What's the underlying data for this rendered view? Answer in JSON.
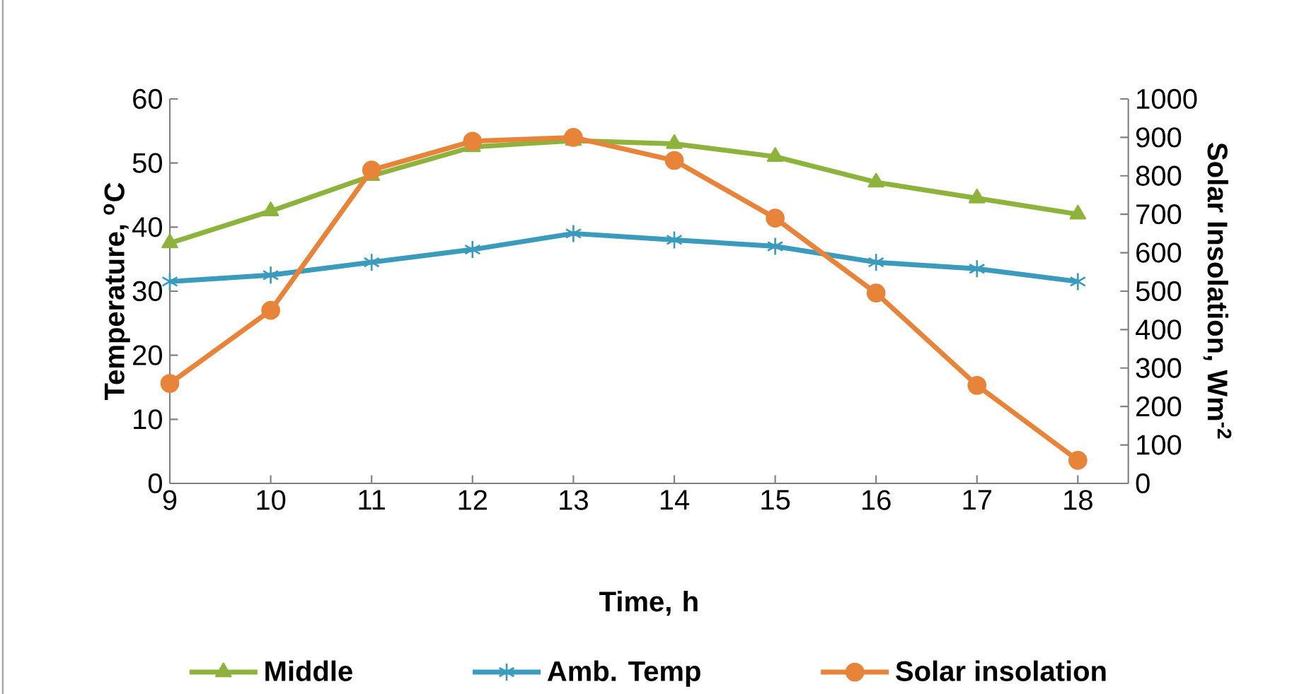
{
  "chart_data": {
    "type": "line",
    "categories": [
      "9",
      "10",
      "11",
      "12",
      "13",
      "14",
      "15",
      "16",
      "17",
      "18"
    ],
    "xlabel": "Time, h",
    "ylabel": "Temperature, $^{o}$C",
    "y2label": "Solar Insolation, Wm$^{-2}$",
    "ylim": [
      0,
      60
    ],
    "yticks": [
      0,
      10,
      20,
      30,
      40,
      50,
      60
    ],
    "y2lim": [
      0,
      1000
    ],
    "y2ticks": [
      0,
      100,
      200,
      300,
      400,
      500,
      600,
      700,
      800,
      900,
      1000
    ],
    "legend": "bottom",
    "grid": false,
    "series": [
      {
        "name": "Middle",
        "color": "#8db33d",
        "marker": "triangle",
        "values": [
          37.5,
          42.5,
          48,
          52.5,
          53.5,
          53,
          51,
          47,
          44.5,
          42
        ]
      },
      {
        "name": "Amb. Temp",
        "color": "#3a9bbd",
        "marker": "cross",
        "values": [
          31.5,
          32.5,
          34.5,
          36.5,
          39,
          38,
          37,
          34.5,
          33.5,
          31.5
        ]
      },
      {
        "name": "Solar insolation",
        "color": "#e8833a",
        "marker": "circle",
        "axis": "y2",
        "values": [
          260,
          450,
          815,
          890,
          900,
          840,
          690,
          495,
          255,
          60
        ]
      }
    ]
  }
}
